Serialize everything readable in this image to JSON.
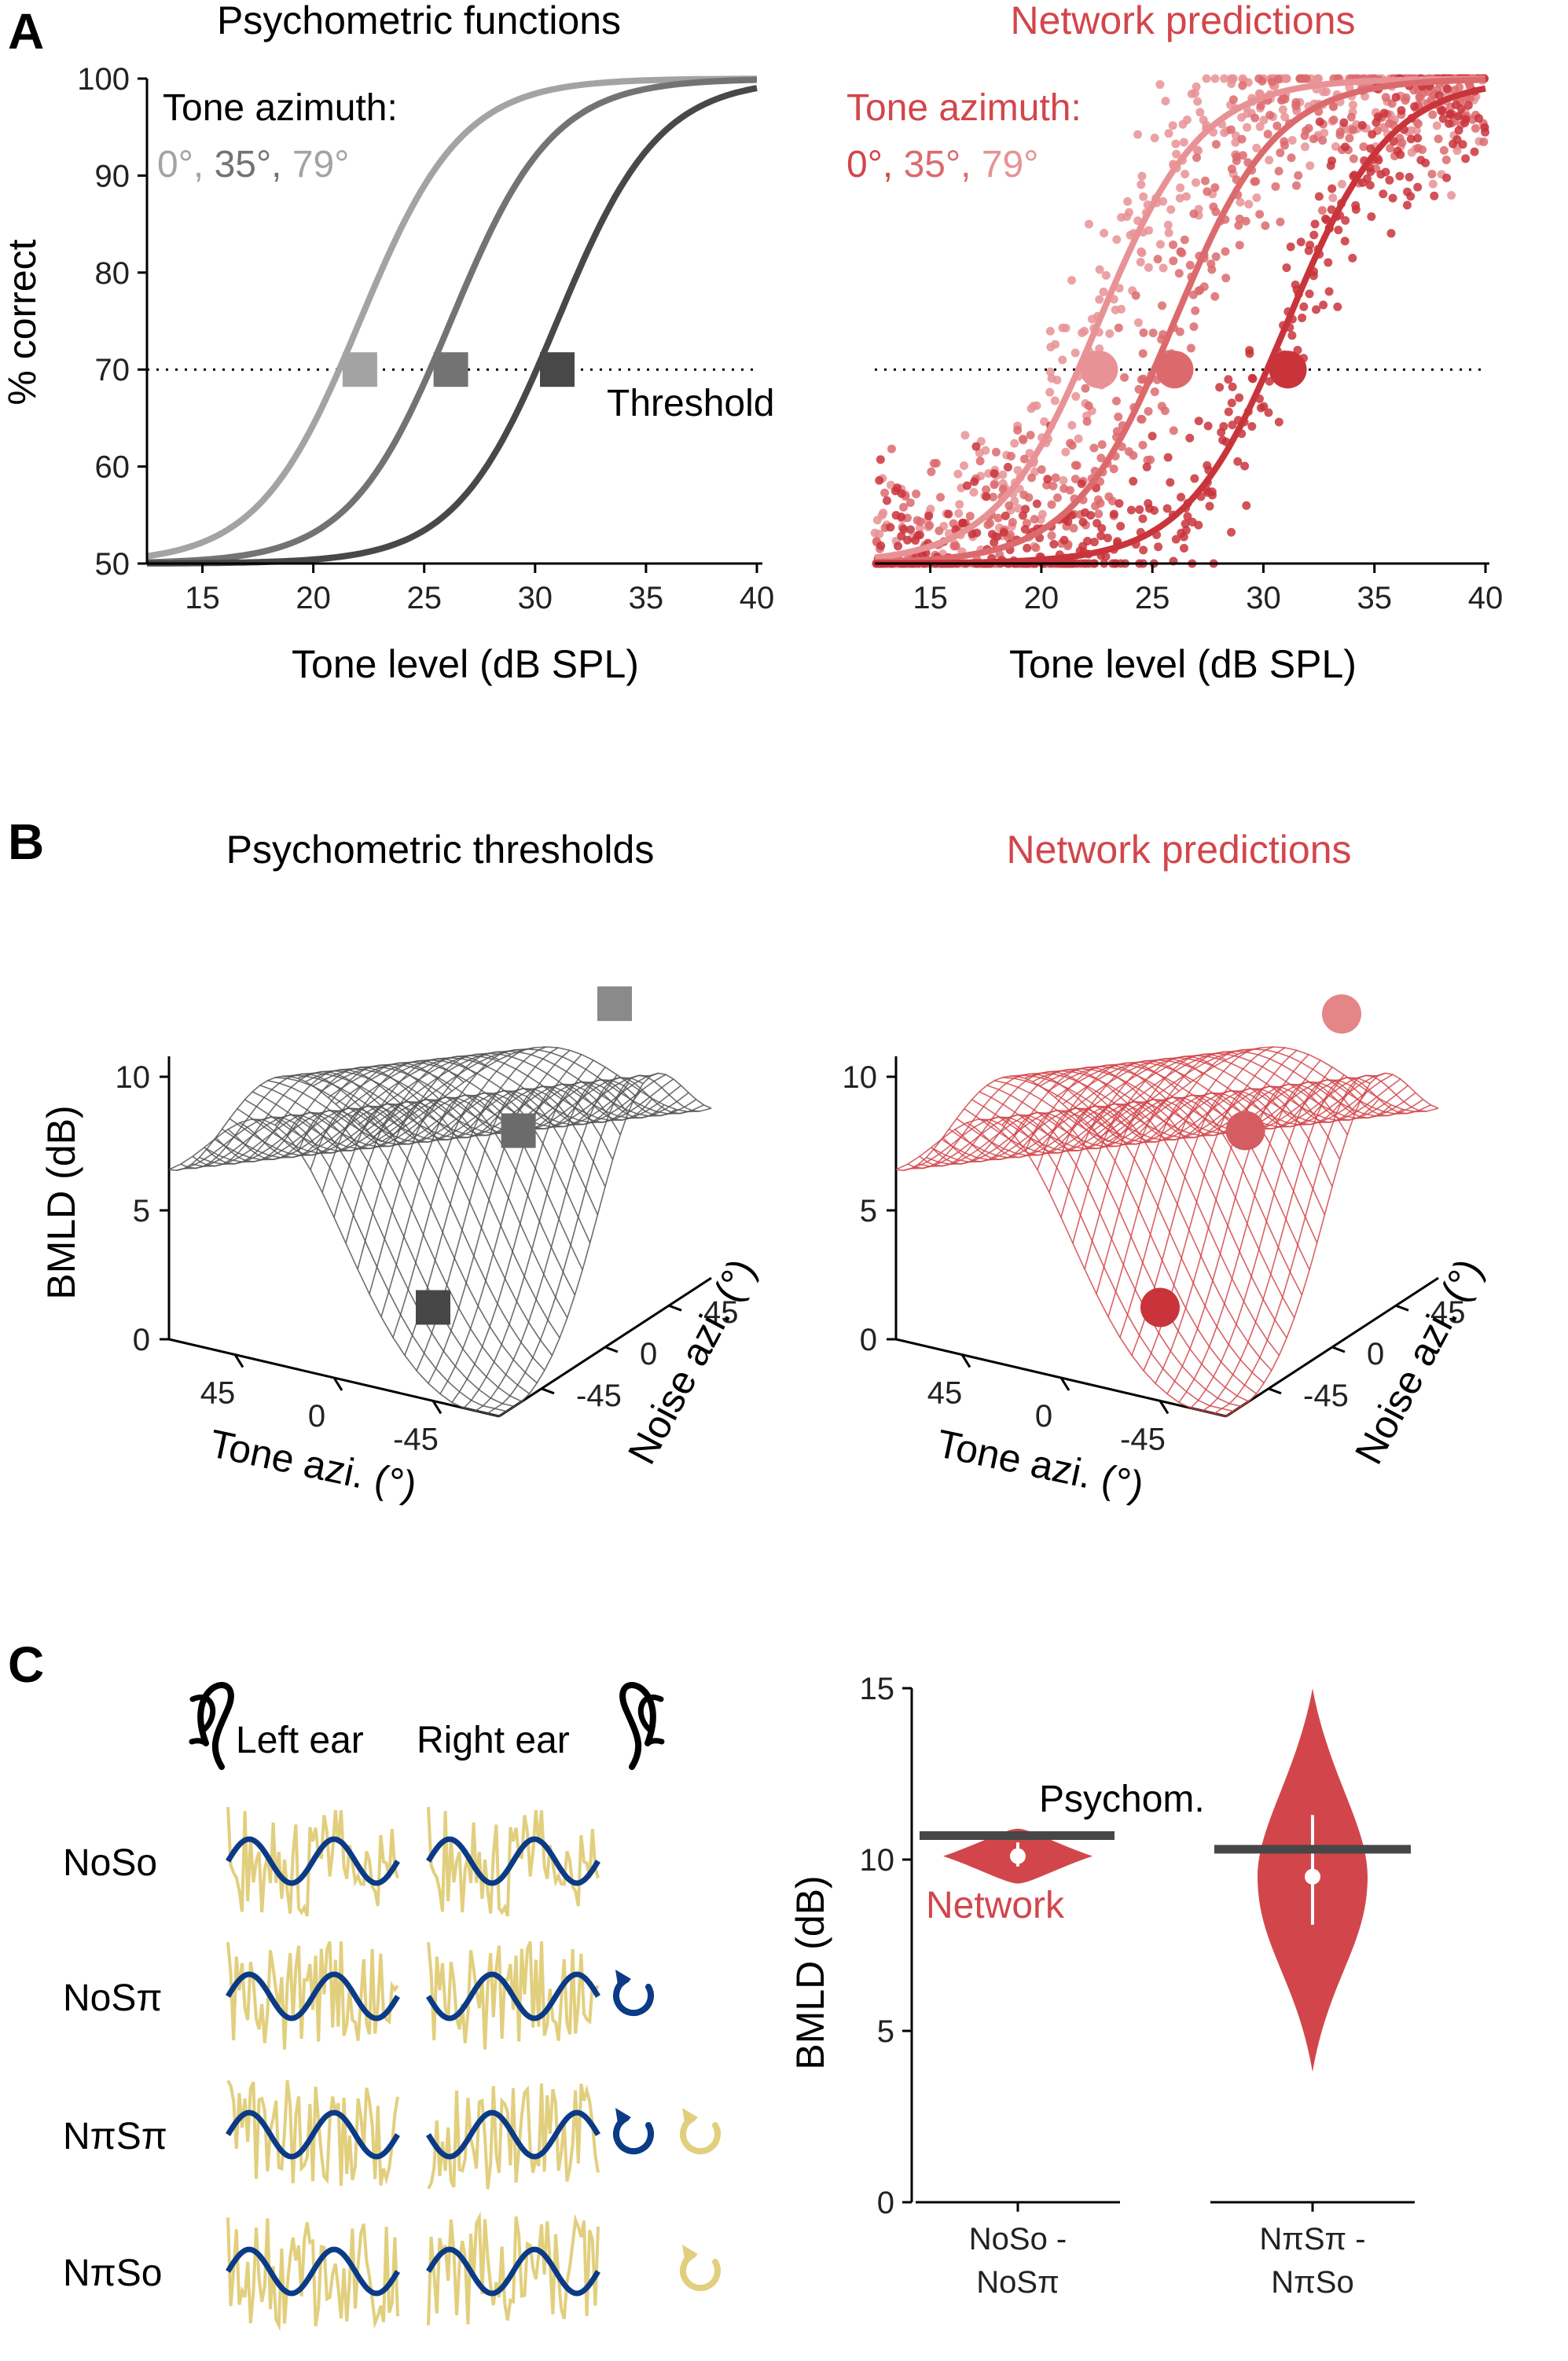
{
  "panel_labels": [
    "A",
    "B",
    "C"
  ],
  "chart_data": [
    {
      "type": "line",
      "title": "Psychometric functions",
      "xlabel": "Tone level (dB SPL)",
      "ylabel": "% correct",
      "xlim": [
        12.5,
        40
      ],
      "ylim": [
        50,
        100
      ],
      "xticks": [
        "15",
        "20",
        "25",
        "30",
        "35",
        "40"
      ],
      "yticks": [
        "50",
        "60",
        "70",
        "80",
        "90",
        "100"
      ],
      "legend_title": "Tone azimuth:",
      "threshold_label": "Threshold",
      "threshold_y": 70,
      "series": [
        {
          "name": "0°",
          "color": "#a3a3a3",
          "midpoint": 22.1,
          "threshold": 22.1
        },
        {
          "name": "35°",
          "color": "#737373",
          "midpoint": 26.2,
          "threshold": 26.2
        },
        {
          "name": "79°",
          "color": "#484848",
          "midpoint": 31.0,
          "threshold": 31.0
        }
      ]
    },
    {
      "type": "scatter",
      "title": "Network predictions",
      "xlabel": "Tone level (dB SPL)",
      "ylabel": "",
      "xlim": [
        12.5,
        40
      ],
      "ylim": [
        50,
        100
      ],
      "xticks": [
        "15",
        "20",
        "25",
        "30",
        "35",
        "40"
      ],
      "legend_title": "Tone azimuth:",
      "threshold_y": 70,
      "series": [
        {
          "name": "0°",
          "color": "#e89295",
          "midpoint": 22.6,
          "threshold": 22.6
        },
        {
          "name": "35°",
          "color": "#dc6a6d",
          "midpoint": 26.0,
          "threshold": 26.0
        },
        {
          "name": "79°",
          "color": "#c9343b",
          "midpoint": 31.1,
          "threshold": 31.1
        }
      ]
    },
    {
      "type": "surface",
      "title": "Psychometric thresholds",
      "zlabel": "BMLD (dB)",
      "xlabel": "Tone azi. (°)",
      "ylabel": "Noise azi. (°)",
      "zticks": [
        "0",
        "5",
        "10"
      ],
      "xticks": [
        "45",
        "0",
        "-45"
      ],
      "yticks": [
        "-45",
        "0",
        "45"
      ],
      "color": "#555555",
      "markers": [
        {
          "z": 12.5
        },
        {
          "z": 8.5
        },
        {
          "z": 2.0
        }
      ]
    },
    {
      "type": "surface",
      "title": "Network predictions",
      "zlabel": "",
      "xlabel": "Tone azi. (°)",
      "ylabel": "Noise azi. (°)",
      "zticks": [
        "0",
        "5",
        "10"
      ],
      "xticks": [
        "45",
        "0",
        "-45"
      ],
      "yticks": [
        "-45",
        "0",
        "45"
      ],
      "color": "#d2464b",
      "markers": [
        {
          "z": 12.0
        },
        {
          "z": 8.5
        },
        {
          "z": 2.0
        }
      ]
    },
    {
      "type": "violin",
      "ylabel": "BMLD (dB)",
      "ylim": [
        0,
        15
      ],
      "yticks": [
        "0",
        "5",
        "10",
        "15"
      ],
      "categories": [
        "NoSo -\nNoSπ",
        "NπSπ -\nNπSo"
      ],
      "category_lines": [
        [
          "NoSo -",
          "NoSπ"
        ],
        [
          "NπSπ -",
          "NπSo"
        ]
      ],
      "network_median": [
        10.1,
        9.5
      ],
      "network_range": [
        [
          9.3,
          10.9
        ],
        [
          3.8,
          15.0
        ]
      ],
      "psychometric": [
        10.7,
        10.3
      ],
      "psychom_label": "Psychom.",
      "network_label": "Network",
      "network_color": "#d2464b",
      "psychom_color": "#474747"
    }
  ],
  "diagram": {
    "left_ear": "Left ear",
    "right_ear": "Right ear",
    "conditions": [
      "NoSo",
      "NoSπ",
      "NπSπ",
      "NπSo"
    ],
    "signal_color": "#0b3b86",
    "noise_color": "#e2cf7e"
  }
}
